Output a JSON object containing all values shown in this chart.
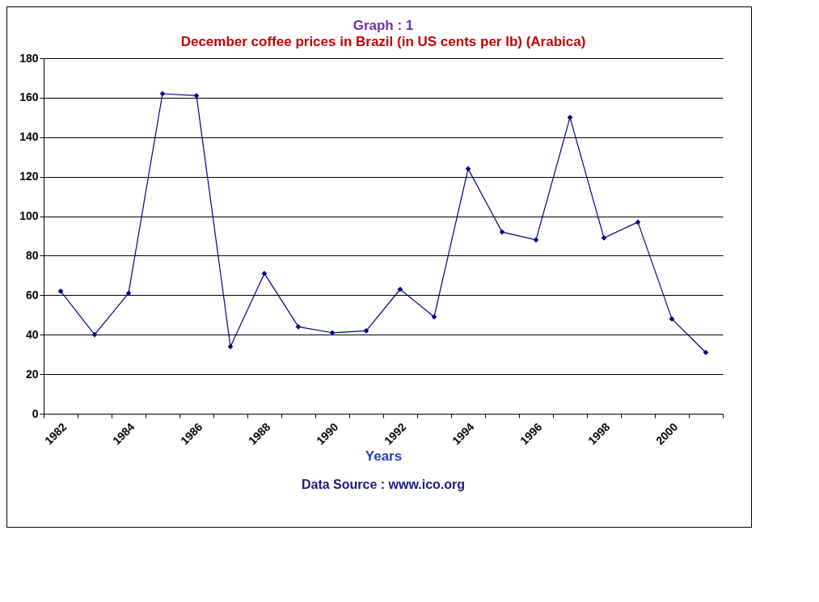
{
  "chart_data": {
    "type": "line",
    "title": "Graph : 1",
    "subtitle": "December coffee prices in Brazil (in US cents per lb) (Arabica)",
    "xlabel": "Years",
    "annotations": [
      "Data Source : www.ico.org"
    ],
    "categories": [
      "1982",
      null,
      "1984",
      null,
      "1986",
      null,
      "1988",
      null,
      "1990",
      null,
      "1992",
      null,
      "1994",
      null,
      "1996",
      null,
      "1998",
      null,
      "2000",
      null
    ],
    "series": [
      {
        "color": "#000080",
        "values": [
          62,
          40,
          61,
          162,
          161,
          34,
          71,
          44,
          41,
          42,
          63,
          49,
          124,
          92,
          88,
          150,
          89,
          97,
          48,
          31
        ]
      }
    ],
    "ylim": [
      0,
      180
    ],
    "yticks": [
      0,
      20,
      40,
      60,
      80,
      100,
      120,
      140,
      160,
      180
    ],
    "grid": "y",
    "marker": "diamond",
    "line_style": "solid"
  }
}
